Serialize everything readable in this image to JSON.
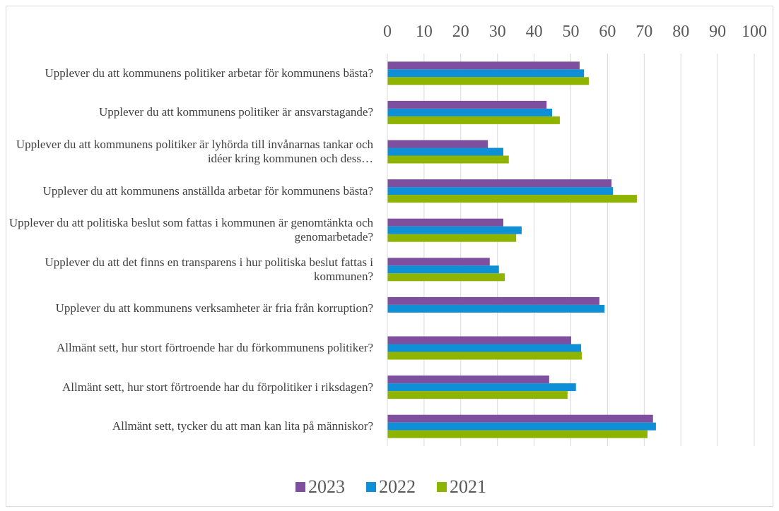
{
  "chart_data": {
    "type": "hbar",
    "categories": [
      "Upplever du att kommunens politiker arbetar för kommunens bästa?",
      "Upplever du att kommunens politiker är ansvarstagande?",
      "Upplever du att kommunens politiker är lyhörda till invånarnas tankar och idéer kring kommunen och dess…",
      "Upplever du att kommunens anställda arbetar för kommunens bästa?",
      "Upplever du att politiska beslut som fattas i kommunen är genomtänkta och genomarbetade?",
      "Upplever du att det finns en transparens i hur politiska beslut fattas i kommunen?",
      "Upplever du att kommunens verksamheter är fria från korruption?",
      "Allmänt sett, hur stort förtroende har du förkommunens politiker?",
      "Allmänt sett, hur stort förtroende har du förpolitiker i riksdagen?",
      "Allmänt sett, tycker du att man kan lita på människor?"
    ],
    "series": [
      {
        "name": "2023",
        "color": "#7f4f9f",
        "values": [
          52.4,
          43.4,
          27.4,
          61.1,
          31.6,
          27.9,
          57.8,
          50.1,
          44.1,
          72.4
        ]
      },
      {
        "name": "2022",
        "color": "#0f8fd6",
        "values": [
          53.6,
          44.9,
          31.6,
          61.5,
          36.6,
          30.4,
          59.2,
          52.8,
          51.4,
          73.2
        ]
      },
      {
        "name": "2021",
        "color": "#8fb400",
        "values": [
          54.9,
          47.0,
          33.1,
          68.0,
          35.1,
          32.0,
          null,
          53.0,
          49.1,
          70.9
        ]
      }
    ],
    "xlim": [
      0,
      100
    ],
    "xticks": [
      0,
      10,
      20,
      30,
      40,
      50,
      60,
      70,
      80,
      90,
      100
    ],
    "grid": true,
    "legend": "bottom"
  }
}
